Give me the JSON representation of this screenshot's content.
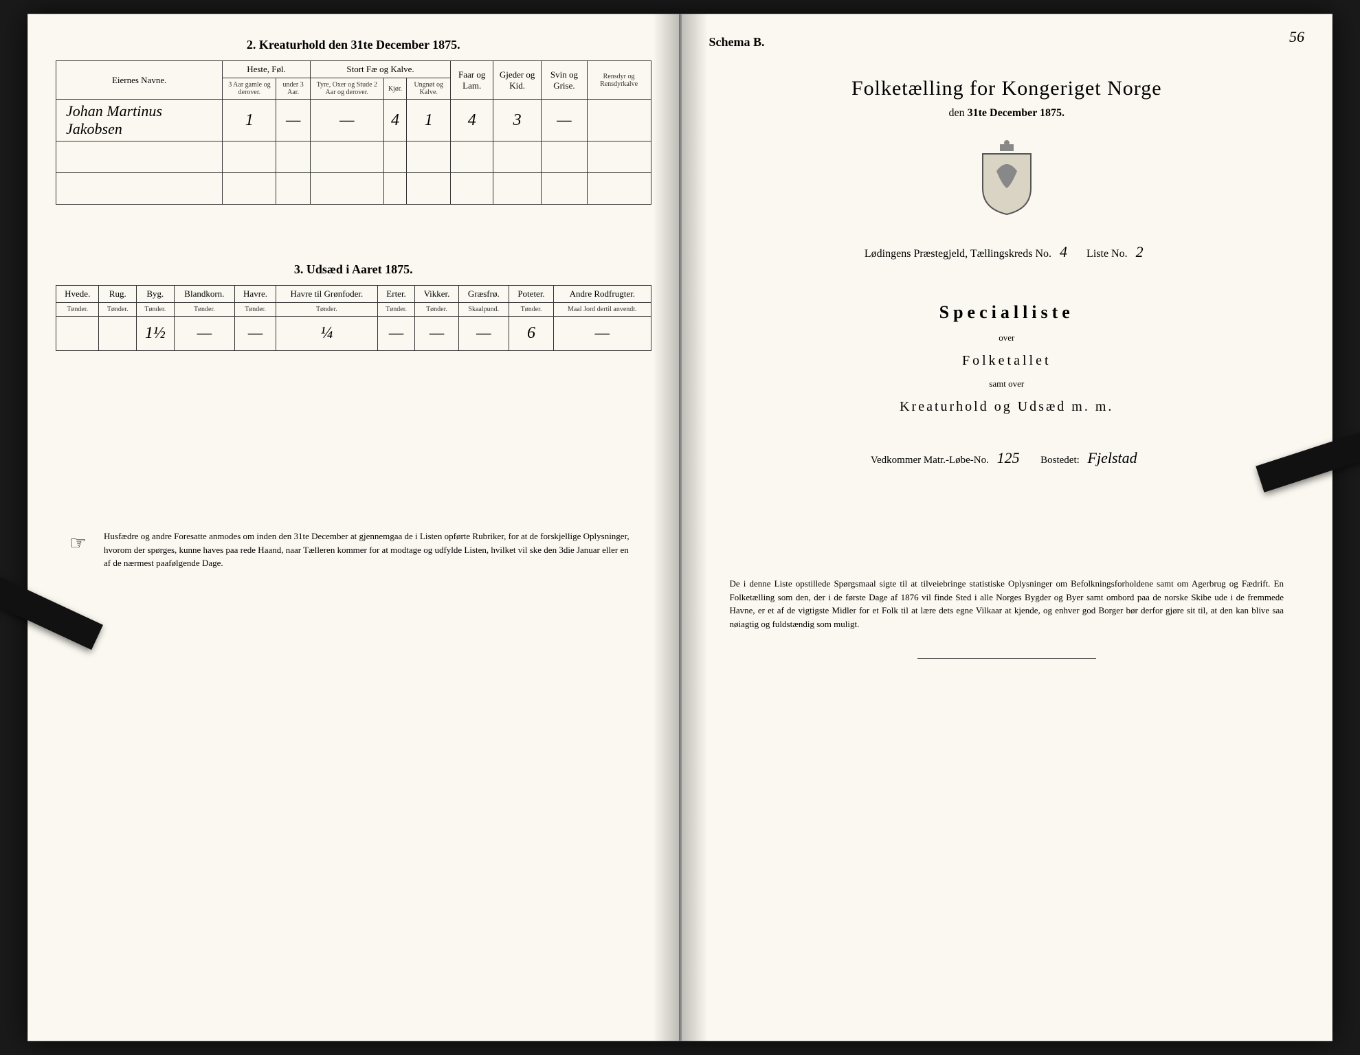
{
  "left": {
    "section2_title": "2.  Kreaturhold den 31te December 1875.",
    "table2": {
      "col_owner": "Eiernes Navne.",
      "grp_heste": "Heste, Føl.",
      "grp_stort": "Stort Fæ og Kalve.",
      "col_faar": "Faar og Lam.",
      "col_gjeder": "Gjeder og Kid.",
      "col_svin": "Svin og Grise.",
      "col_ren": "Rensdyr og Rensdyrkalve",
      "sub_h1": "3 Aar gamle og derover.",
      "sub_h2": "under 3 Aar.",
      "sub_s1": "Tyre, Oxer og Stude 2 Aar og derover.",
      "sub_s2": "Kjør.",
      "sub_s3": "Ungnøt og Kalve.",
      "row": {
        "name": "Johan Martinus Jakobsen",
        "h1": "1",
        "h2": "—",
        "s1": "—",
        "s2": "4",
        "s3": "1",
        "faar": "4",
        "gjeder": "3",
        "svin": "—",
        "ren": ""
      }
    },
    "section3_title": "3.  Udsæd i Aaret 1875.",
    "table3": {
      "cols": [
        "Hvede.",
        "Rug.",
        "Byg.",
        "Blandkorn.",
        "Havre.",
        "Havre til Grønfoder.",
        "Erter.",
        "Vikker.",
        "Græsfrø.",
        "Poteter.",
        "Andre Rodfrugter."
      ],
      "units": [
        "Tønder.",
        "Tønder.",
        "Tønder.",
        "Tønder.",
        "Tønder.",
        "Tønder.",
        "Tønder.",
        "Tønder.",
        "Skaalpund.",
        "Tønder.",
        "Maal Jord dertil anvendt."
      ],
      "row": [
        "",
        "",
        "1½",
        "—",
        "—",
        "¼",
        "—",
        "—",
        "—",
        "6",
        "—"
      ]
    },
    "footnote": "Husfædre og andre Foresatte anmodes om inden den 31te December at gjennemgaa de i Listen opførte Rubriker, for at de forskjellige Oplysninger, hvorom der spørges, kunne haves paa rede Haand, naar Tælleren kommer for at modtage og udfylde Listen, hvilket vil ske den 3die Januar eller en af de nærmest paafølgende Dage."
  },
  "right": {
    "schema": "Schema B.",
    "pagenum": "56",
    "title": "Folketælling for Kongeriget Norge",
    "subtitle_pre": "den ",
    "subtitle_bold": "31te December 1875.",
    "parish_line_pre": "Lødingens Præstegjeld,  Tællingskreds No.",
    "kreds_no": "4",
    "liste_label": "Liste No.",
    "liste_no": "2",
    "specialliste": "Specialliste",
    "over": "over",
    "folketallet": "Folketallet",
    "samt": "samt over",
    "kreatur": "Kreaturhold og Udsæd m. m.",
    "ved_pre": "Vedkommer Matr.-Løbe-No.",
    "matr_no": "125",
    "bostedet_label": "Bostedet:",
    "bostedet": "Fjelstad",
    "footnote": "De i denne Liste opstillede Spørgsmaal sigte til at tilveiebringe statistiske Oplysninger om Befolkningsforholdene samt om Agerbrug og Fædrift.  En Folketælling som den, der i de første Dage af 1876 vil finde Sted i alle Norges Bygder og Byer samt ombord paa de norske Skibe ude i de fremmede Havne, er et af de vigtigste Midler for et Folk til at lære dets egne Vilkaar at kjende, og enhver god Borger bør derfor gjøre sit til, at den kan blive saa nøiagtig og fuldstændig som muligt."
  }
}
